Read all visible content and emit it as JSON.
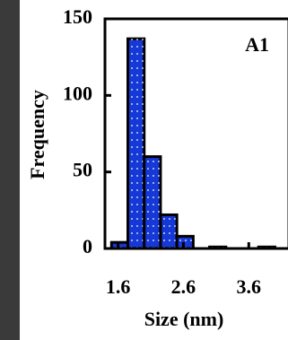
{
  "chart_data": {
    "type": "histogram",
    "annotation": "A1",
    "x_label": "Size (nm)",
    "y_label": "Frequency",
    "bins": [
      1.5,
      1.75,
      2.0,
      2.25,
      2.5,
      2.75,
      3.0,
      3.25,
      3.5,
      3.75,
      4.0
    ],
    "values": [
      4,
      137,
      60,
      22,
      8,
      0,
      1,
      0,
      0,
      1
    ],
    "color": "#1538d6",
    "xlim": [
      1.4,
      4.2
    ],
    "ylim": [
      0,
      150
    ],
    "xticks": [
      1.6,
      2.6,
      3.6
    ],
    "yticks": [
      0,
      50,
      100,
      150
    ]
  }
}
